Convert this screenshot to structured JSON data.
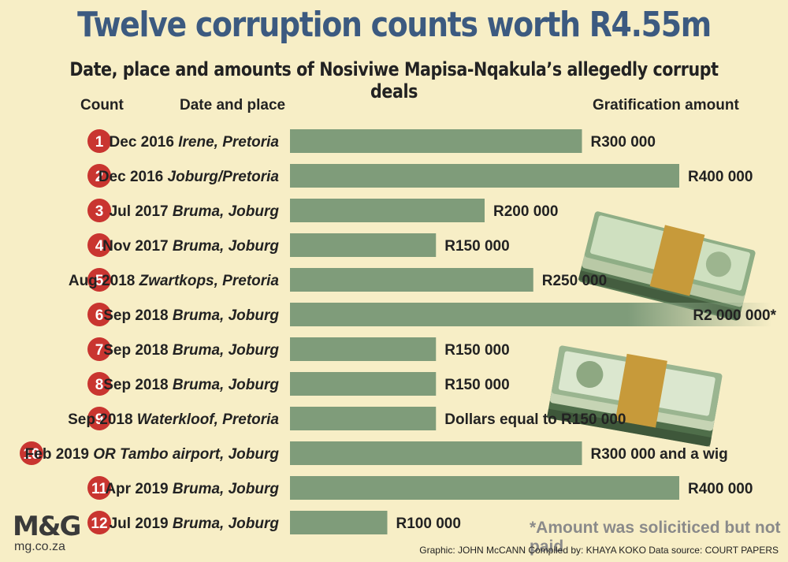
{
  "title": "Twelve corruption counts worth R4.55m",
  "subtitle": "Date, place and amounts of Nosiviwe Mapisa-Nqakula’s allegedly corrupt deals",
  "headers": {
    "count": "Count",
    "date_place": "Date and place",
    "amount": "Gratification amount"
  },
  "footnote": "*Amount was soliciticed but not paid",
  "credits": "Graphic: JOHN McCANN  Compiled by: KHAYA KOKO  Data source: COURT PAPERS",
  "logo": {
    "text": "M&G",
    "url": "mg.co.za"
  },
  "colors": {
    "background": "#f7eec6",
    "bar": "#7f9c7a",
    "badge": "#c93530",
    "title": "#3c5a80"
  },
  "chart_data": {
    "type": "bar",
    "orientation": "horizontal",
    "title": "Twelve corruption counts worth R4.55m",
    "categories": [
      "1",
      "2",
      "3",
      "4",
      "5",
      "6",
      "7",
      "8",
      "9",
      "10",
      "11",
      "12"
    ],
    "rows": [
      {
        "count": "1",
        "date": "Dec 2016",
        "place": "Irene, Pretoria",
        "label": "R300 000",
        "value": 300000
      },
      {
        "count": "2",
        "date": "Dec 2016",
        "place": "Joburg/Pretoria",
        "label": "R400 000",
        "value": 400000
      },
      {
        "count": "3",
        "date": "Jul 2017",
        "place": "Bruma, Joburg",
        "label": "R200 000",
        "value": 200000
      },
      {
        "count": "4",
        "date": "Nov 2017",
        "place": "Bruma, Joburg",
        "label": "R150 000",
        "value": 150000
      },
      {
        "count": "5",
        "date": "Aug 2018",
        "place": "Zwartkops, Pretoria",
        "label": "R250 000",
        "value": 250000
      },
      {
        "count": "6",
        "date": "Sep 2018",
        "place": "Bruma, Joburg",
        "label": "R2 000 000*",
        "value": 2000000,
        "truncated": true
      },
      {
        "count": "7",
        "date": "Sep 2018",
        "place": "Bruma, Joburg",
        "label": "R150 000",
        "value": 150000
      },
      {
        "count": "8",
        "date": "Sep 2018",
        "place": "Bruma, Joburg",
        "label": "R150 000",
        "value": 150000
      },
      {
        "count": "9",
        "date": "Sep 2018",
        "place": "Waterkloof, Pretoria",
        "label": "Dollars equal to R150 000",
        "value": 150000
      },
      {
        "count": "10",
        "date": "Feb 2019",
        "place": "OR Tambo airport, Joburg",
        "label": "R300 000 and a wig",
        "value": 300000
      },
      {
        "count": "11",
        "date": "Apr 2019",
        "place": "Bruma, Joburg",
        "label": "R400 000",
        "value": 400000
      },
      {
        "count": "12",
        "date": "Jul 2019",
        "place": "Bruma, Joburg",
        "label": "R100 000",
        "value": 100000
      }
    ],
    "values": [
      300000,
      400000,
      200000,
      150000,
      250000,
      2000000,
      150000,
      150000,
      150000,
      300000,
      400000,
      100000
    ],
    "grid": false,
    "legend": "none"
  }
}
